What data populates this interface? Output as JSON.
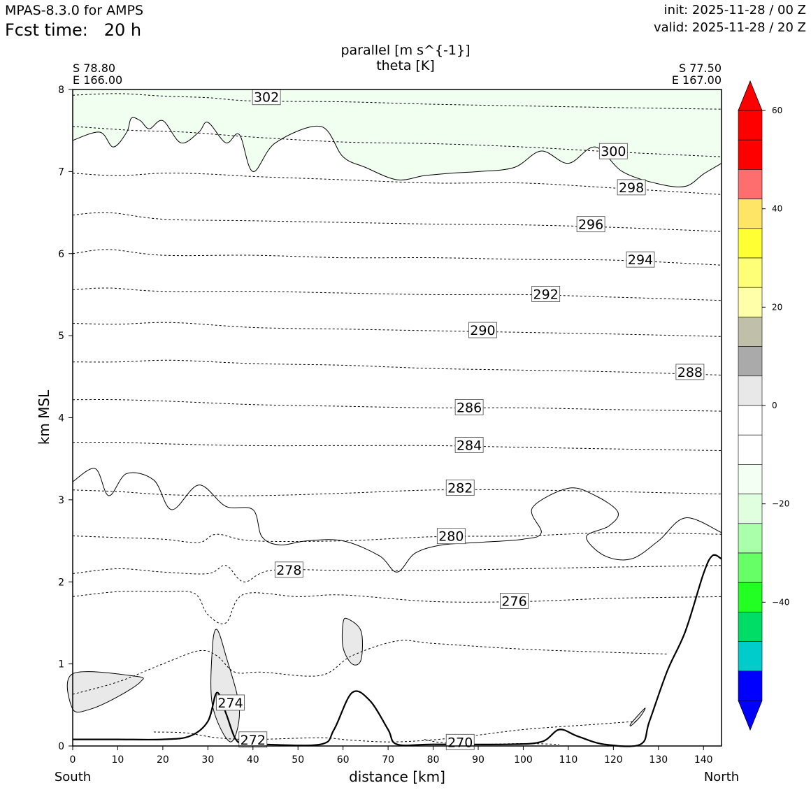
{
  "header": {
    "model": "MPAS-8.3.0 for AMPS",
    "fcst_label": "Fcst time:",
    "fcst_value": "20 h",
    "init": "init: 2025-11-28 / 00 Z",
    "valid": "valid: 2025-11-28 / 20 Z"
  },
  "chart_data": {
    "type": "contour",
    "title_line1": "parallel [m s^{-1}]",
    "title_line2": "theta [K]",
    "xlabel": "distance [km]",
    "ylabel": "km MSL",
    "xlim": [
      0,
      144
    ],
    "ylim": [
      0,
      8
    ],
    "xticks": [
      "0",
      "10",
      "20",
      "30",
      "40",
      "50",
      "60",
      "70",
      "80",
      "90",
      "100",
      "110",
      "120",
      "130",
      "140"
    ],
    "yticks": [
      "0",
      "1",
      "2",
      "3",
      "4",
      "5",
      "6",
      "7",
      "8"
    ],
    "endpoints": {
      "left_lat": "S 78.80",
      "left_lon": "E 166.00",
      "left_dir": "South",
      "right_lat": "S 77.50",
      "right_lon": "E 167.00",
      "right_dir": "North"
    },
    "theta_isentropes": [
      {
        "label": "302",
        "x": 43,
        "y": 7.9,
        "pts": [
          [
            0,
            7.93
          ],
          [
            10,
            7.95
          ],
          [
            20,
            7.92
          ],
          [
            30,
            7.9
          ],
          [
            40,
            7.86
          ],
          [
            60,
            7.85
          ],
          [
            80,
            7.82
          ],
          [
            100,
            7.8
          ],
          [
            120,
            7.78
          ],
          [
            144,
            7.76
          ]
        ]
      },
      {
        "label": "300",
        "x": 120,
        "y": 7.24,
        "pts": [
          [
            0,
            7.55
          ],
          [
            8,
            7.52
          ],
          [
            14,
            7.5
          ],
          [
            25,
            7.48
          ],
          [
            40,
            7.42
          ],
          [
            60,
            7.36
          ],
          [
            80,
            7.34
          ],
          [
            100,
            7.3
          ],
          [
            120,
            7.24
          ],
          [
            144,
            7.18
          ]
        ]
      },
      {
        "label": "298",
        "x": 124,
        "y": 6.8,
        "pts": [
          [
            0,
            6.98
          ],
          [
            10,
            6.95
          ],
          [
            20,
            6.98
          ],
          [
            30,
            6.97
          ],
          [
            40,
            6.94
          ],
          [
            60,
            6.9
          ],
          [
            80,
            6.86
          ],
          [
            100,
            6.86
          ],
          [
            120,
            6.8
          ],
          [
            144,
            6.72
          ]
        ]
      },
      {
        "label": "296",
        "x": 115,
        "y": 6.35,
        "pts": [
          [
            0,
            6.47
          ],
          [
            8,
            6.5
          ],
          [
            20,
            6.42
          ],
          [
            40,
            6.4
          ],
          [
            60,
            6.38
          ],
          [
            80,
            6.36
          ],
          [
            100,
            6.35
          ],
          [
            120,
            6.32
          ],
          [
            144,
            6.27
          ]
        ]
      },
      {
        "label": "294",
        "x": 126,
        "y": 5.92,
        "pts": [
          [
            0,
            6.0
          ],
          [
            8,
            6.05
          ],
          [
            20,
            5.98
          ],
          [
            40,
            5.98
          ],
          [
            60,
            5.95
          ],
          [
            80,
            5.95
          ],
          [
            100,
            5.93
          ],
          [
            120,
            5.92
          ],
          [
            144,
            5.86
          ]
        ]
      },
      {
        "label": "292",
        "x": 105,
        "y": 5.5,
        "pts": [
          [
            0,
            5.56
          ],
          [
            8,
            5.58
          ],
          [
            20,
            5.54
          ],
          [
            40,
            5.54
          ],
          [
            60,
            5.52
          ],
          [
            80,
            5.5
          ],
          [
            100,
            5.5
          ],
          [
            120,
            5.47
          ],
          [
            144,
            5.43
          ]
        ]
      },
      {
        "label": "290",
        "x": 91,
        "y": 5.06,
        "pts": [
          [
            0,
            5.15
          ],
          [
            10,
            5.14
          ],
          [
            22,
            5.16
          ],
          [
            40,
            5.1
          ],
          [
            60,
            5.08
          ],
          [
            80,
            5.06
          ],
          [
            100,
            5.04
          ],
          [
            120,
            5.02
          ],
          [
            144,
            4.99
          ]
        ]
      },
      {
        "label": "288",
        "x": 137,
        "y": 4.55,
        "pts": [
          [
            0,
            4.68
          ],
          [
            10,
            4.68
          ],
          [
            22,
            4.7
          ],
          [
            40,
            4.66
          ],
          [
            60,
            4.64
          ],
          [
            80,
            4.6
          ],
          [
            100,
            4.58
          ],
          [
            120,
            4.56
          ],
          [
            144,
            4.52
          ]
        ]
      },
      {
        "label": "286",
        "x": 88,
        "y": 4.12,
        "pts": [
          [
            0,
            4.22
          ],
          [
            10,
            4.22
          ],
          [
            22,
            4.2
          ],
          [
            40,
            4.16
          ],
          [
            60,
            4.14
          ],
          [
            80,
            4.12
          ],
          [
            100,
            4.12
          ],
          [
            120,
            4.1
          ],
          [
            144,
            4.08
          ]
        ]
      },
      {
        "label": "284",
        "x": 88,
        "y": 3.66,
        "pts": [
          [
            0,
            3.7
          ],
          [
            10,
            3.7
          ],
          [
            22,
            3.68
          ],
          [
            40,
            3.66
          ],
          [
            60,
            3.66
          ],
          [
            80,
            3.66
          ],
          [
            100,
            3.64
          ],
          [
            120,
            3.62
          ],
          [
            144,
            3.6
          ]
        ]
      },
      {
        "label": "282",
        "x": 86,
        "y": 3.14,
        "pts": [
          [
            0,
            3.12
          ],
          [
            10,
            3.1
          ],
          [
            22,
            3.06
          ],
          [
            40,
            3.05
          ],
          [
            60,
            3.08
          ],
          [
            80,
            3.12
          ],
          [
            100,
            3.12
          ],
          [
            120,
            3.1
          ],
          [
            144,
            3.07
          ]
        ]
      },
      {
        "label": "280",
        "x": 84,
        "y": 2.55,
        "pts": [
          [
            0,
            2.56
          ],
          [
            10,
            2.54
          ],
          [
            20,
            2.52
          ],
          [
            28,
            2.48
          ],
          [
            32,
            2.58
          ],
          [
            40,
            2.5
          ],
          [
            60,
            2.5
          ],
          [
            80,
            2.55
          ],
          [
            100,
            2.56
          ],
          [
            120,
            2.6
          ],
          [
            144,
            2.58
          ]
        ]
      },
      {
        "label": "278",
        "x": 48,
        "y": 2.14,
        "pts": [
          [
            0,
            2.1
          ],
          [
            10,
            2.16
          ],
          [
            20,
            2.12
          ],
          [
            30,
            2.1
          ],
          [
            34,
            2.2
          ],
          [
            38,
            2.0
          ],
          [
            44,
            2.14
          ],
          [
            60,
            2.14
          ],
          [
            80,
            2.14
          ],
          [
            100,
            2.16
          ],
          [
            120,
            2.18
          ],
          [
            144,
            2.2
          ]
        ]
      },
      {
        "label": "276",
        "x": 98,
        "y": 1.76,
        "pts": [
          [
            0,
            1.82
          ],
          [
            10,
            1.88
          ],
          [
            20,
            1.88
          ],
          [
            27,
            1.86
          ],
          [
            30,
            1.6
          ],
          [
            34,
            1.5
          ],
          [
            38,
            1.85
          ],
          [
            50,
            1.82
          ],
          [
            60,
            1.84
          ],
          [
            80,
            1.76
          ],
          [
            100,
            1.76
          ],
          [
            120,
            1.8
          ],
          [
            144,
            1.82
          ]
        ]
      },
      {
        "label": "274",
        "x": 35,
        "y": 0.52,
        "pts": [
          [
            0,
            0.63
          ],
          [
            10,
            0.78
          ],
          [
            20,
            1.0
          ],
          [
            28,
            1.16
          ],
          [
            32,
            1.1
          ],
          [
            36,
            0.9
          ],
          [
            42,
            0.9
          ],
          [
            55,
            0.86
          ],
          [
            62,
            1.1
          ],
          [
            72,
            1.28
          ],
          [
            80,
            1.25
          ],
          [
            100,
            1.18
          ],
          [
            120,
            1.14
          ],
          [
            132,
            1.12
          ]
        ]
      },
      {
        "label": "272",
        "x": 40,
        "y": 0.07,
        "pts": [
          [
            18,
            0.17
          ],
          [
            25,
            0.16
          ],
          [
            32,
            0.1
          ],
          [
            40,
            0.08
          ],
          [
            55,
            0.1
          ],
          [
            62,
            0.07
          ],
          [
            72,
            0.05
          ],
          [
            85,
            0.1
          ],
          [
            100,
            0.2
          ],
          [
            115,
            0.26
          ],
          [
            125,
            0.3
          ]
        ]
      },
      {
        "label": "270",
        "x": 86,
        "y": 0.04,
        "pts": [
          [
            78,
            0.08
          ],
          [
            82,
            0.04
          ],
          [
            90,
            0.02
          ],
          [
            100,
            0.03
          ],
          [
            108,
            0.02
          ]
        ]
      }
    ],
    "wind_contours": [
      {
        "name": "upper",
        "fill": "#f0fff0",
        "pts": [
          [
            0,
            7.38
          ],
          [
            6,
            7.48
          ],
          [
            9,
            7.3
          ],
          [
            12,
            7.48
          ],
          [
            13,
            7.65
          ],
          [
            15,
            7.62
          ],
          [
            17,
            7.52
          ],
          [
            20,
            7.62
          ],
          [
            24,
            7.35
          ],
          [
            28,
            7.48
          ],
          [
            30,
            7.6
          ],
          [
            34,
            7.35
          ],
          [
            37,
            7.45
          ],
          [
            40,
            7.0
          ],
          [
            45,
            7.35
          ],
          [
            55,
            7.55
          ],
          [
            60,
            7.18
          ],
          [
            65,
            7.05
          ],
          [
            72,
            6.9
          ],
          [
            78,
            6.95
          ],
          [
            84,
            6.98
          ],
          [
            90,
            7.0
          ],
          [
            98,
            7.05
          ],
          [
            104,
            7.25
          ],
          [
            110,
            7.1
          ],
          [
            116,
            7.3
          ],
          [
            122,
            7.0
          ],
          [
            130,
            6.85
          ],
          [
            136,
            6.82
          ],
          [
            140,
            6.97
          ],
          [
            144,
            7.1
          ]
        ]
      },
      {
        "name": "mid",
        "fill": "none",
        "pts": [
          [
            0,
            3.22
          ],
          [
            5,
            3.38
          ],
          [
            8,
            3.05
          ],
          [
            12,
            3.32
          ],
          [
            18,
            3.24
          ],
          [
            22,
            2.88
          ],
          [
            28,
            3.18
          ],
          [
            34,
            2.92
          ],
          [
            40,
            2.88
          ],
          [
            42,
            2.55
          ],
          [
            46,
            2.45
          ],
          [
            52,
            2.5
          ],
          [
            60,
            2.5
          ],
          [
            68,
            2.32
          ],
          [
            72,
            2.12
          ],
          [
            76,
            2.35
          ],
          [
            82,
            2.45
          ],
          [
            90,
            2.48
          ],
          [
            100,
            2.52
          ],
          [
            104,
            2.6
          ],
          [
            102,
            2.9
          ],
          [
            110,
            3.14
          ],
          [
            116,
            3.05
          ],
          [
            121,
            2.85
          ],
          [
            119,
            2.68
          ],
          [
            114,
            2.55
          ],
          [
            118,
            2.32
          ],
          [
            124,
            2.28
          ],
          [
            130,
            2.5
          ],
          [
            136,
            2.78
          ],
          [
            144,
            2.6
          ]
        ]
      },
      {
        "name": "west-tongue",
        "fill": "#e9e9e9",
        "pts": [
          [
            0,
            0.88
          ],
          [
            14,
            0.85
          ],
          [
            15,
            0.78
          ],
          [
            10,
            0.6
          ],
          [
            4,
            0.45
          ],
          [
            0,
            0.45
          ]
        ]
      },
      {
        "name": "spike",
        "fill": "#e9e9e9",
        "pts": [
          [
            32,
            1.42
          ],
          [
            34,
            1.1
          ],
          [
            37,
            0.45
          ],
          [
            35,
            0.05
          ],
          [
            31,
            0.5
          ],
          [
            31,
            1.2
          ]
        ]
      },
      {
        "name": "blob",
        "fill": "#e9e9e9",
        "pts": [
          [
            61,
            1.55
          ],
          [
            64,
            1.4
          ],
          [
            64,
            1.05
          ],
          [
            62,
            1.0
          ],
          [
            60,
            1.2
          ],
          [
            60,
            1.5
          ]
        ]
      },
      {
        "name": "east-wedge",
        "fill": "#e9e9e9",
        "pts": [
          [
            124,
            0.28
          ],
          [
            127,
            0.46
          ],
          [
            126,
            0.36
          ],
          [
            124,
            0.25
          ]
        ]
      }
    ],
    "terrain": [
      [
        0,
        0.08
      ],
      [
        10,
        0.08
      ],
      [
        20,
        0.08
      ],
      [
        26,
        0.12
      ],
      [
        30,
        0.3
      ],
      [
        32,
        0.65
      ],
      [
        34,
        0.4
      ],
      [
        36,
        0.1
      ],
      [
        38,
        0.02
      ],
      [
        42,
        0.02
      ],
      [
        55,
        0.02
      ],
      [
        58,
        0.2
      ],
      [
        62,
        0.65
      ],
      [
        66,
        0.55
      ],
      [
        70,
        0.2
      ],
      [
        72,
        0.02
      ],
      [
        80,
        0.02
      ],
      [
        96,
        0.02
      ],
      [
        104,
        0.05
      ],
      [
        108,
        0.2
      ],
      [
        112,
        0.12
      ],
      [
        118,
        0.02
      ],
      [
        126,
        0.02
      ],
      [
        128,
        0.3
      ],
      [
        132,
        0.92
      ],
      [
        136,
        1.4
      ],
      [
        140,
        2.1
      ],
      [
        142,
        2.32
      ],
      [
        144,
        2.28
      ]
    ],
    "colorbar": {
      "ticks": [
        "60",
        "40",
        "20",
        "0",
        "−20",
        "−40"
      ],
      "tick_values": [
        60,
        40,
        20,
        0,
        -20,
        -40
      ],
      "min": -60,
      "max": 60,
      "step": 6,
      "colors": [
        "#0000ff",
        "#00cccc",
        "#00dd66",
        "#22ff22",
        "#66ff66",
        "#aaffaa",
        "#dfffdf",
        "#f2fff2",
        "#ffffff",
        "#ffffff",
        "#e8e8e8",
        "#aaaaaa",
        "#c0c0aa",
        "#ffffaa",
        "#ffff77",
        "#ffff33",
        "#ffe566",
        "#ff6e6e",
        "#ff0000",
        "#ff0000"
      ]
    }
  }
}
